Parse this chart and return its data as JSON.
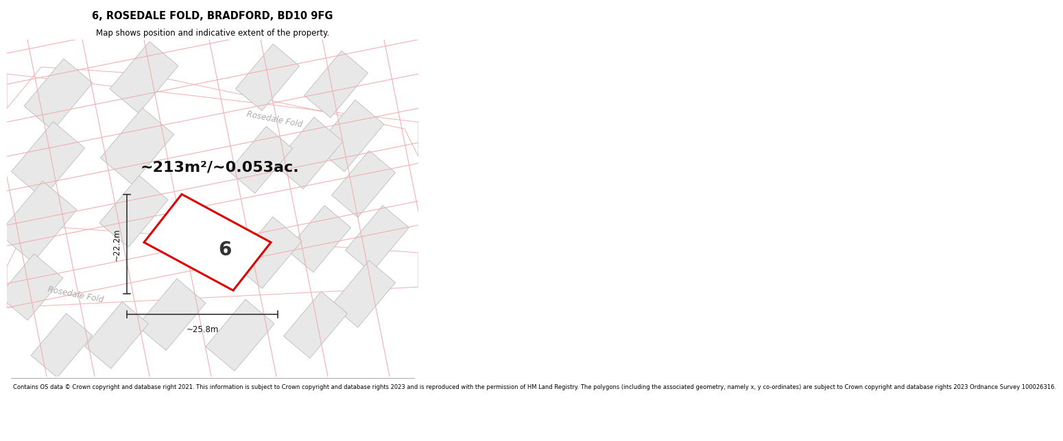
{
  "title": "6, ROSEDALE FOLD, BRADFORD, BD10 9FG",
  "subtitle": "Map shows position and indicative extent of the property.",
  "footer": "Contains OS data © Crown copyright and database right 2021. This information is subject to Crown copyright and database rights 2023 and is reproduced with the permission of HM Land Registry. The polygons (including the associated geometry, namely x, y co-ordinates) are subject to Crown copyright and database rights 2023 Ordnance Survey 100026316.",
  "area_label": "~213m²/~0.053ac.",
  "plot_number": "6",
  "dim_width": "~25.8m",
  "dim_height": "~22.2m",
  "bg_color": "#ffffff",
  "map_bg": "#ffffff",
  "building_fill": "#e8e8e8",
  "building_edge": "#bbbbbb",
  "road_outline_color": "#f0b0b0",
  "plot_edge_color": "#dd0000",
  "road_label_color": "#aaaaaa",
  "dim_line_color": "#333333",
  "area_label_fontsize": 16,
  "plot_num_fontsize": 20
}
